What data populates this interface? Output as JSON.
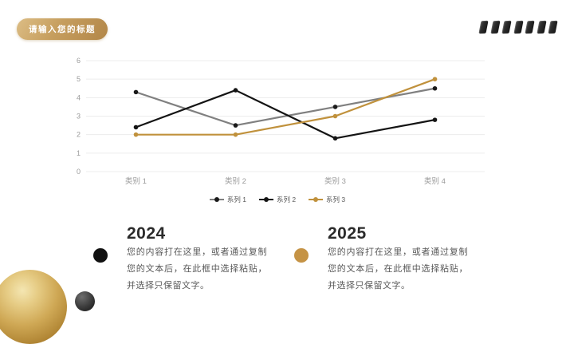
{
  "slide": {
    "title_badge": "请输入您的标题",
    "decoration_cube_count": 7,
    "accent_gold": "#c0913c",
    "accent_black": "#141414"
  },
  "chart_data": {
    "type": "line",
    "title": "",
    "xlabel": "",
    "ylabel": "",
    "categories": [
      "类别 1",
      "类别 2",
      "类别 3",
      "类别 4"
    ],
    "series": [
      {
        "name": "系列 1",
        "values": [
          4.3,
          2.5,
          3.5,
          4.5
        ],
        "color": "#808080",
        "marker_color": "#1a1a1a"
      },
      {
        "name": "系列 2",
        "values": [
          2.4,
          4.4,
          1.8,
          2.8
        ],
        "color": "#141414",
        "marker_color": "#141414"
      },
      {
        "name": "系列 3",
        "values": [
          2.0,
          2.0,
          3.0,
          5.0
        ],
        "color": "#c0913c",
        "marker_color": "#c0913c"
      }
    ],
    "ylim": [
      0,
      6
    ],
    "yticks": [
      0,
      1,
      2,
      3,
      4,
      5,
      6
    ],
    "grid": true,
    "grid_color": "#ececec",
    "axis_label_color": "#9b9b9b",
    "legend_position": "bottom",
    "legend_text_color": "#595959"
  },
  "sections": [
    {
      "year": "2024",
      "bullet_color": "#111111",
      "body": "您的内容打在这里，或者通过复制您的文本后，在此框中选择粘贴，并选择只保留文字。"
    },
    {
      "year": "2025",
      "bullet_color": "#c59345",
      "body": "您的内容打在这里，或者通过复制您的文本后，在此框中选择粘贴，并选择只保留文字。"
    }
  ]
}
